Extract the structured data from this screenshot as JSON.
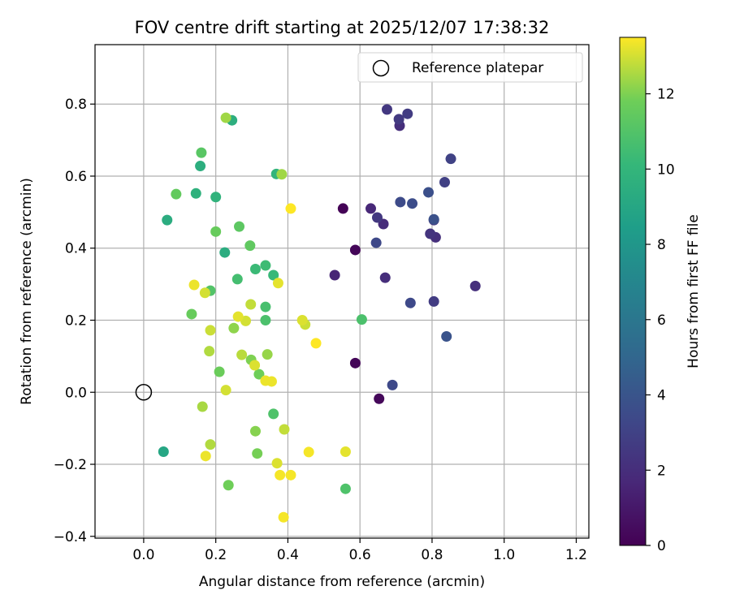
{
  "chart_data": {
    "type": "scatter",
    "title": "FOV centre drift starting at 2025/12/07 17:38:32",
    "xlabel": "Angular distance from reference (arcmin)",
    "ylabel": "Rotation from reference (arcmin)",
    "xlim": [
      -0.135,
      1.235
    ],
    "ylim": [
      -0.405,
      0.965
    ],
    "xticks": [
      0.0,
      0.2,
      0.4,
      0.6,
      0.8,
      1.0,
      1.2
    ],
    "xtick_labels": [
      "0.0",
      "0.2",
      "0.4",
      "0.6",
      "0.8",
      "1.0",
      "1.2"
    ],
    "yticks": [
      -0.4,
      -0.2,
      0.0,
      0.2,
      0.4,
      0.6,
      0.8
    ],
    "ytick_labels": [
      "−0.4",
      "−0.2",
      "0.0",
      "0.2",
      "0.4",
      "0.6",
      "0.8"
    ],
    "grid": true,
    "legend": {
      "position": "upper-right",
      "label": "Reference platepar"
    },
    "reference_point": {
      "x": 0.0,
      "y": 0.0
    },
    "colorbar": {
      "label": "Hours from first FF file",
      "range": [
        0,
        13.5
      ],
      "ticks": [
        0,
        2,
        4,
        6,
        8,
        10,
        12
      ],
      "tick_labels": [
        "0",
        "2",
        "4",
        "6",
        "8",
        "10",
        "12"
      ],
      "colormap": "viridis"
    },
    "points": [
      {
        "x": 0.553,
        "y": 0.51,
        "h": 0.1
      },
      {
        "x": 0.587,
        "y": 0.395,
        "h": 0.2
      },
      {
        "x": 0.587,
        "y": 0.081,
        "h": 0.2
      },
      {
        "x": 0.653,
        "y": -0.018,
        "h": 0.3
      },
      {
        "x": 0.53,
        "y": 0.325,
        "h": 1.6
      },
      {
        "x": 0.63,
        "y": 0.51,
        "h": 1.7
      },
      {
        "x": 0.665,
        "y": 0.467,
        "h": 1.9
      },
      {
        "x": 0.67,
        "y": 0.318,
        "h": 2.0
      },
      {
        "x": 0.71,
        "y": 0.74,
        "h": 2.0
      },
      {
        "x": 0.81,
        "y": 0.43,
        "h": 2.1
      },
      {
        "x": 0.92,
        "y": 0.295,
        "h": 2.1
      },
      {
        "x": 0.805,
        "y": 0.478,
        "h": 2.2
      },
      {
        "x": 0.795,
        "y": 0.44,
        "h": 2.3
      },
      {
        "x": 0.648,
        "y": 0.485,
        "h": 2.5
      },
      {
        "x": 0.675,
        "y": 0.785,
        "h": 2.5
      },
      {
        "x": 0.708,
        "y": 0.758,
        "h": 2.6
      },
      {
        "x": 0.732,
        "y": 0.773,
        "h": 2.7
      },
      {
        "x": 0.805,
        "y": 0.252,
        "h": 2.7
      },
      {
        "x": 0.835,
        "y": 0.583,
        "h": 2.9
      },
      {
        "x": 0.852,
        "y": 0.648,
        "h": 3.0
      },
      {
        "x": 0.645,
        "y": 0.415,
        "h": 3.3
      },
      {
        "x": 0.69,
        "y": 0.02,
        "h": 3.4
      },
      {
        "x": 0.74,
        "y": 0.248,
        "h": 3.4
      },
      {
        "x": 0.712,
        "y": 0.528,
        "h": 3.5
      },
      {
        "x": 0.745,
        "y": 0.524,
        "h": 3.6
      },
      {
        "x": 0.79,
        "y": 0.555,
        "h": 3.7
      },
      {
        "x": 0.805,
        "y": 0.48,
        "h": 3.8
      },
      {
        "x": 0.84,
        "y": 0.155,
        "h": 3.9
      },
      {
        "x": 0.055,
        "y": -0.165,
        "h": 9.0
      },
      {
        "x": 0.065,
        "y": 0.478,
        "h": 9.4
      },
      {
        "x": 0.225,
        "y": 0.388,
        "h": 9.4
      },
      {
        "x": 0.157,
        "y": 0.628,
        "h": 9.5
      },
      {
        "x": 0.245,
        "y": 0.755,
        "h": 9.5
      },
      {
        "x": 0.145,
        "y": 0.552,
        "h": 9.7
      },
      {
        "x": 0.2,
        "y": 0.542,
        "h": 9.8
      },
      {
        "x": 0.368,
        "y": 0.606,
        "h": 9.9
      },
      {
        "x": 0.36,
        "y": 0.325,
        "h": 10.2
      },
      {
        "x": 0.31,
        "y": 0.342,
        "h": 10.3
      },
      {
        "x": 0.338,
        "y": 0.352,
        "h": 10.4
      },
      {
        "x": 0.26,
        "y": 0.314,
        "h": 10.6
      },
      {
        "x": 0.338,
        "y": 0.237,
        "h": 10.7
      },
      {
        "x": 0.338,
        "y": 0.2,
        "h": 10.8
      },
      {
        "x": 0.605,
        "y": 0.202,
        "h": 10.8
      },
      {
        "x": 0.36,
        "y": -0.06,
        "h": 10.9
      },
      {
        "x": 0.56,
        "y": -0.268,
        "h": 10.9
      },
      {
        "x": 0.185,
        "y": 0.282,
        "h": 11.0
      },
      {
        "x": 0.16,
        "y": 0.665,
        "h": 11.2
      },
      {
        "x": 0.265,
        "y": 0.46,
        "h": 11.3
      },
      {
        "x": 0.295,
        "y": 0.407,
        "h": 11.4
      },
      {
        "x": 0.09,
        "y": 0.55,
        "h": 11.5
      },
      {
        "x": 0.2,
        "y": 0.446,
        "h": 11.6
      },
      {
        "x": 0.133,
        "y": 0.217,
        "h": 11.6
      },
      {
        "x": 0.21,
        "y": 0.057,
        "h": 11.7
      },
      {
        "x": 0.32,
        "y": 0.05,
        "h": 11.8
      },
      {
        "x": 0.235,
        "y": -0.258,
        "h": 11.8
      },
      {
        "x": 0.315,
        "y": -0.17,
        "h": 11.9
      },
      {
        "x": 0.298,
        "y": 0.09,
        "h": 12.0
      },
      {
        "x": 0.31,
        "y": -0.108,
        "h": 12.1
      },
      {
        "x": 0.25,
        "y": 0.178,
        "h": 12.2
      },
      {
        "x": 0.343,
        "y": 0.105,
        "h": 12.3
      },
      {
        "x": 0.228,
        "y": 0.762,
        "h": 12.4
      },
      {
        "x": 0.383,
        "y": 0.605,
        "h": 12.4
      },
      {
        "x": 0.163,
        "y": -0.04,
        "h": 12.5
      },
      {
        "x": 0.185,
        "y": -0.145,
        "h": 12.6
      },
      {
        "x": 0.182,
        "y": 0.114,
        "h": 12.6
      },
      {
        "x": 0.272,
        "y": 0.104,
        "h": 12.7
      },
      {
        "x": 0.39,
        "y": -0.103,
        "h": 12.8
      },
      {
        "x": 0.297,
        "y": 0.244,
        "h": 12.8
      },
      {
        "x": 0.185,
        "y": 0.172,
        "h": 12.9
      },
      {
        "x": 0.448,
        "y": 0.188,
        "h": 12.9
      },
      {
        "x": 0.17,
        "y": 0.276,
        "h": 13.0
      },
      {
        "x": 0.228,
        "y": 0.006,
        "h": 13.0
      },
      {
        "x": 0.283,
        "y": 0.198,
        "h": 13.0
      },
      {
        "x": 0.308,
        "y": 0.075,
        "h": 13.1
      },
      {
        "x": 0.44,
        "y": 0.2,
        "h": 13.1
      },
      {
        "x": 0.37,
        "y": -0.197,
        "h": 13.1
      },
      {
        "x": 0.373,
        "y": 0.303,
        "h": 13.2
      },
      {
        "x": 0.262,
        "y": 0.21,
        "h": 13.2
      },
      {
        "x": 0.56,
        "y": -0.165,
        "h": 13.2
      },
      {
        "x": 0.14,
        "y": 0.298,
        "h": 13.3
      },
      {
        "x": 0.172,
        "y": -0.177,
        "h": 13.3
      },
      {
        "x": 0.338,
        "y": 0.032,
        "h": 13.3
      },
      {
        "x": 0.355,
        "y": 0.03,
        "h": 13.3
      },
      {
        "x": 0.458,
        "y": -0.166,
        "h": 13.4
      },
      {
        "x": 0.378,
        "y": -0.23,
        "h": 13.4
      },
      {
        "x": 0.408,
        "y": -0.23,
        "h": 13.4
      },
      {
        "x": 0.388,
        "y": -0.347,
        "h": 13.4
      },
      {
        "x": 0.408,
        "y": 0.51,
        "h": 13.5
      },
      {
        "x": 0.478,
        "y": 0.136,
        "h": 13.5
      }
    ]
  }
}
